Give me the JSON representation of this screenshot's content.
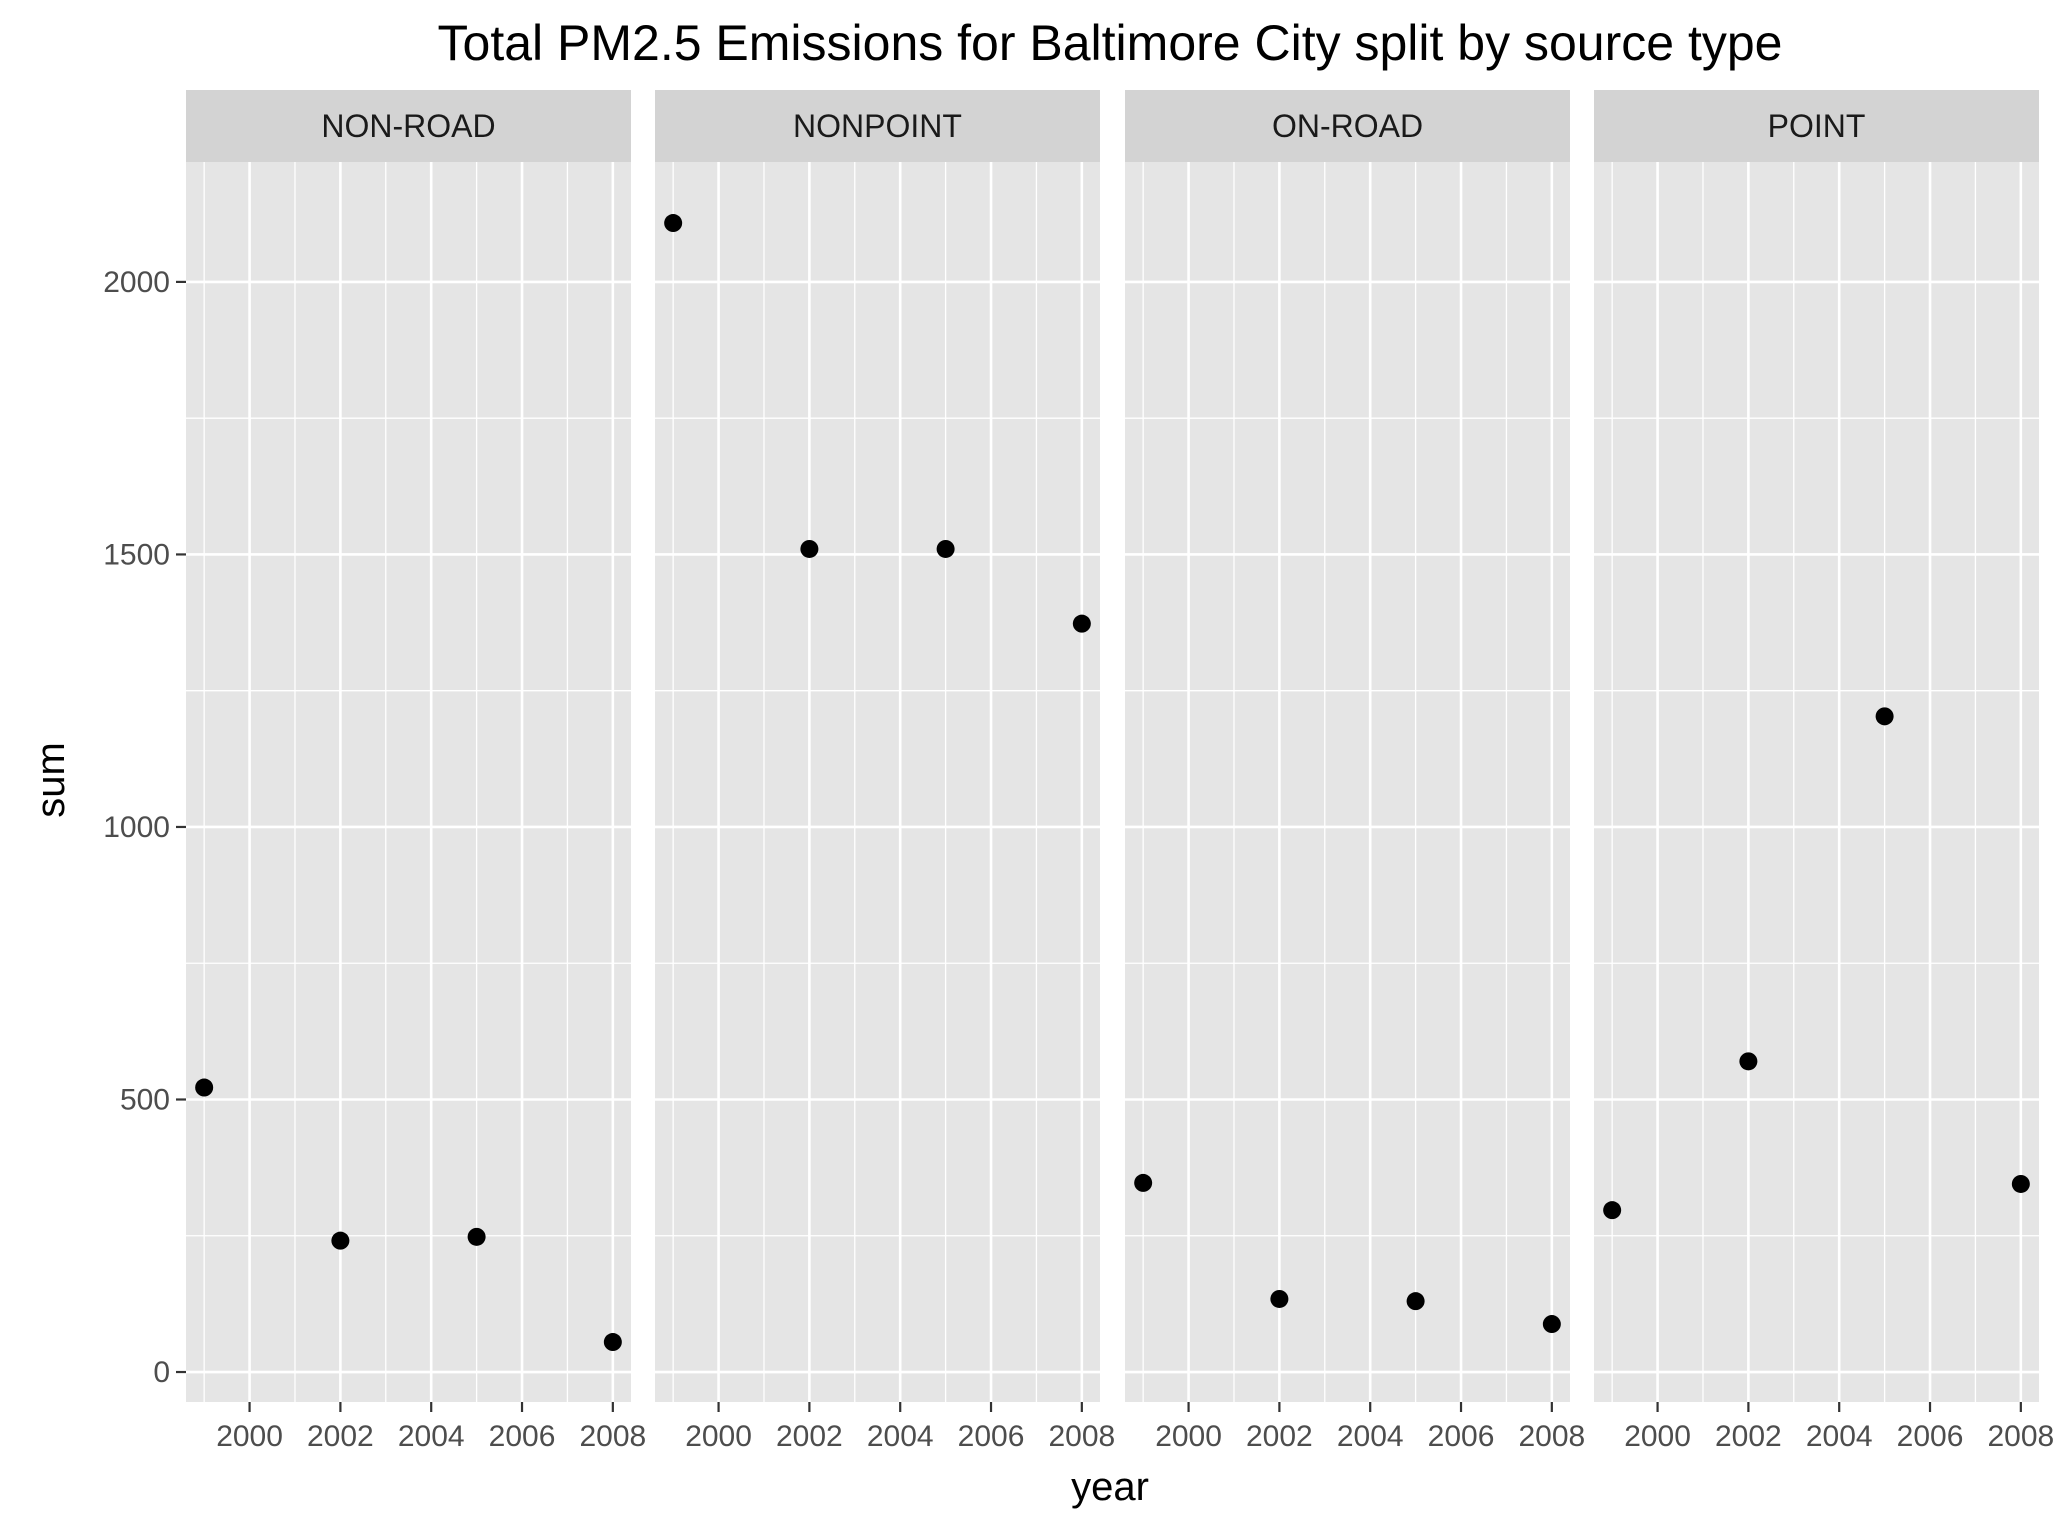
{
  "chart_data": {
    "type": "scatter",
    "title": "Total PM2.5 Emissions for Baltimore City split by source type",
    "xlabel": "year",
    "ylabel": "sum",
    "x_ticks": [
      2000,
      2002,
      2004,
      2006,
      2008
    ],
    "y_ticks": [
      0,
      500,
      1000,
      1500,
      2000
    ],
    "xlim": [
      1998.6,
      2008.4
    ],
    "ylim": [
      -55,
      2220
    ],
    "grid": true,
    "point_color": "#000000",
    "panel_color": "#e5e5e5",
    "strip_color": "#d3d3d3",
    "facets": [
      {
        "label": "NON-ROAD",
        "points": [
          {
            "x": 1999,
            "y": 522
          },
          {
            "x": 2002,
            "y": 241
          },
          {
            "x": 2005,
            "y": 248
          },
          {
            "x": 2008,
            "y": 55
          }
        ]
      },
      {
        "label": "NONPOINT",
        "points": [
          {
            "x": 1999,
            "y": 2108
          },
          {
            "x": 2002,
            "y": 1510
          },
          {
            "x": 2005,
            "y": 1510
          },
          {
            "x": 2008,
            "y": 1373
          }
        ]
      },
      {
        "label": "ON-ROAD",
        "points": [
          {
            "x": 1999,
            "y": 347
          },
          {
            "x": 2002,
            "y": 134
          },
          {
            "x": 2005,
            "y": 130
          },
          {
            "x": 2008,
            "y": 88
          }
        ]
      },
      {
        "label": "POINT",
        "points": [
          {
            "x": 1999,
            "y": 297
          },
          {
            "x": 2002,
            "y": 570
          },
          {
            "x": 2005,
            "y": 1203
          },
          {
            "x": 2008,
            "y": 345
          }
        ]
      }
    ]
  }
}
